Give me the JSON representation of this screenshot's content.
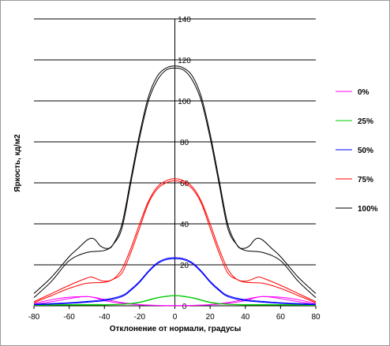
{
  "chart_data": {
    "type": "line",
    "title": "",
    "xlabel": "Отклонение от нормали, градусы",
    "ylabel": "Яркость, кд/м2",
    "xlim": [
      -80,
      80
    ],
    "ylim": [
      0,
      140
    ],
    "x_ticks": [
      "-80",
      "-60",
      "-40",
      "-20",
      "0",
      "20",
      "40",
      "60",
      "80"
    ],
    "y_ticks": [
      "0",
      "20",
      "40",
      "60",
      "80",
      "100",
      "120",
      "140"
    ],
    "grid": "horizontal",
    "legend_position": "right",
    "series": [
      {
        "name": "0%",
        "color": "#ff00ff",
        "curves": [
          {
            "x": [
              -80,
              -70,
              -60,
              -50,
              -45,
              -40,
              -30,
              -20,
              -10,
              0,
              10,
              20,
              30,
              40,
              45,
              50,
              60,
              70,
              80
            ],
            "y": [
              1,
              3,
              4.2,
              4.5,
              3.8,
              2.5,
              1.2,
              0.5,
              0.2,
              0.1,
              0.2,
              0.5,
              1.2,
              2.5,
              3.8,
              4.5,
              4.2,
              3,
              1
            ]
          },
          {
            "x": [
              -80,
              -70,
              -60,
              -50,
              -40,
              -30,
              -20,
              -10,
              0,
              10,
              20,
              30,
              40,
              50,
              60,
              70,
              80
            ],
            "y": [
              0.6,
              2,
              3.5,
              4.5,
              3.2,
              1.6,
              0.6,
              0.2,
              0.1,
              0.2,
              0.6,
              1.6,
              3.2,
              4.5,
              3.5,
              2,
              0.6
            ]
          }
        ]
      },
      {
        "name": "25%",
        "color": "#00cc00",
        "curves": [
          {
            "x": [
              -80,
              -60,
              -40,
              -30,
              -20,
              -10,
              0,
              10,
              20,
              30,
              40,
              60,
              80
            ],
            "y": [
              0.3,
              0.6,
              0.6,
              0.8,
              1.8,
              4,
              5,
              4,
              1.8,
              0.8,
              0.6,
              0.6,
              0.3
            ]
          },
          {
            "x": [
              -80,
              -60,
              -40,
              -30,
              -20,
              -10,
              0,
              10,
              20,
              30,
              40,
              60,
              80
            ],
            "y": [
              0.2,
              0.4,
              0.4,
              0.7,
              1.6,
              3.8,
              4.9,
              3.8,
              1.6,
              0.7,
              0.4,
              0.4,
              0.2
            ]
          }
        ]
      },
      {
        "name": "50%",
        "color": "#0000ff",
        "curves": [
          {
            "x": [
              -80,
              -60,
              -40,
              -30,
              -25,
              -20,
              -15,
              -10,
              -5,
              0,
              5,
              10,
              15,
              20,
              25,
              30,
              40,
              60,
              80
            ],
            "y": [
              0.8,
              1.5,
              3,
              5,
              8,
              12,
              17,
              21,
              23,
              23.5,
              23,
              21,
              17,
              12,
              8,
              5,
              3,
              1.5,
              0.8
            ]
          },
          {
            "x": [
              -80,
              -60,
              -40,
              -30,
              -25,
              -20,
              -15,
              -10,
              -5,
              0,
              5,
              10,
              15,
              20,
              25,
              30,
              40,
              60,
              80
            ],
            "y": [
              0.5,
              1.2,
              2.5,
              4.5,
              7.5,
              11.5,
              16.5,
              20.5,
              22.5,
              23,
              22.5,
              20.5,
              16.5,
              11.5,
              7.5,
              4.5,
              2.5,
              1.2,
              0.5
            ]
          }
        ]
      },
      {
        "name": "75%",
        "color": "#ff0000",
        "curves": [
          {
            "x": [
              -80,
              -70,
              -60,
              -50,
              -47,
              -44,
              -40,
              -35,
              -30,
              -25,
              -20,
              -15,
              -10,
              -5,
              0,
              5,
              10,
              15,
              20,
              25,
              30,
              35,
              40,
              44,
              47,
              50,
              60,
              70,
              80
            ],
            "y": [
              2,
              6,
              10,
              13.5,
              14,
              13,
              12,
              13,
              18,
              28,
              40,
              51,
              58,
              61,
              62,
              61,
              58,
              51,
              40,
              28,
              18,
              13,
              12,
              13,
              14,
              13.5,
              10,
              6,
              2
            ]
          },
          {
            "x": [
              -80,
              -70,
              -60,
              -50,
              -40,
              -35,
              -30,
              -25,
              -20,
              -15,
              -10,
              -5,
              0,
              5,
              10,
              15,
              20,
              25,
              30,
              35,
              40,
              50,
              60,
              70,
              80
            ],
            "y": [
              1.5,
              5,
              8.5,
              11,
              11.5,
              13,
              16,
              26,
              38,
              50,
              57,
              60,
              61,
              60,
              57,
              50,
              38,
              26,
              16,
              13,
              11.5,
              11,
              8.5,
              5,
              1.5
            ]
          }
        ]
      },
      {
        "name": "100%",
        "color": "#000000",
        "curves": [
          {
            "x": [
              -80,
              -70,
              -60,
              -55,
              -50,
              -47,
              -45,
              -42,
              -38,
              -35,
              -30,
              -25,
              -20,
              -15,
              -10,
              -5,
              0,
              5,
              10,
              15,
              20,
              25,
              30,
              35,
              38,
              42,
              45,
              47,
              50,
              55,
              60,
              70,
              80
            ],
            "y": [
              6,
              14,
              24,
              28,
              32,
              33,
              32,
              29,
              28,
              30,
              40,
              62,
              84,
              102,
              112,
              116,
              117,
              116,
              112,
              102,
              84,
              62,
              40,
              30,
              28,
              29,
              32,
              33,
              32,
              28,
              24,
              14,
              6
            ]
          },
          {
            "x": [
              -80,
              -70,
              -60,
              -50,
              -40,
              -35,
              -30,
              -25,
              -20,
              -15,
              -10,
              -5,
              0,
              5,
              10,
              15,
              20,
              25,
              30,
              35,
              40,
              50,
              60,
              70,
              80
            ],
            "y": [
              4,
              12,
              22,
              26,
              27,
              30,
              38,
              60,
              82,
              100,
              110,
              115,
              116,
              115,
              110,
              100,
              82,
              60,
              38,
              30,
              27,
              26,
              22,
              12,
              4
            ]
          }
        ]
      }
    ]
  }
}
